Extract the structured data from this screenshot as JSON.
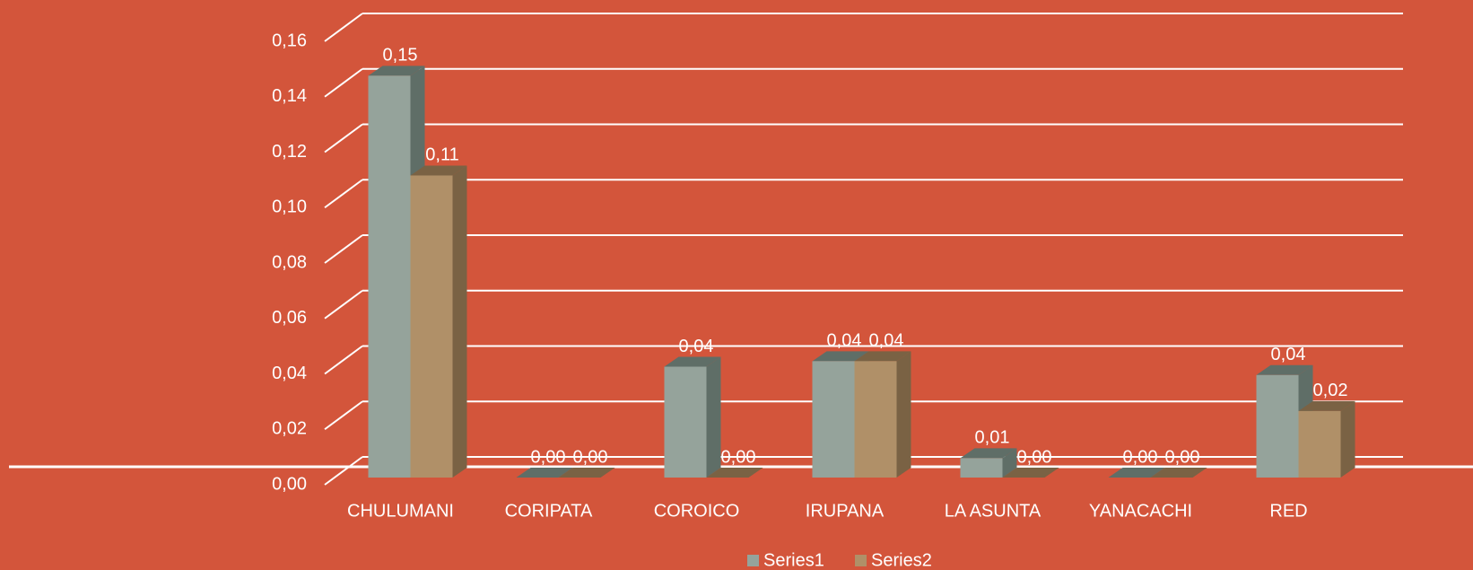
{
  "chart_data": {
    "type": "bar3d",
    "categories": [
      "CHULUMANI",
      "CORIPATA",
      "COROICO",
      "IRUPANA",
      "LA ASUNTA",
      "YANACACHI",
      "RED"
    ],
    "series": [
      {
        "name": "Series1",
        "color": "#95a39b",
        "side_color": "#5f6e67",
        "values": [
          0.145,
          0,
          0.04,
          0.042,
          0.007,
          0,
          0.037
        ],
        "value_labels": [
          "0,15",
          "0,00",
          "0,04",
          "0,04",
          "0,01",
          "0,00",
          "0,04"
        ]
      },
      {
        "name": "Series2",
        "color": "#b09068",
        "side_color": "#7a6244",
        "values": [
          0.109,
          0,
          0,
          0.042,
          0,
          0,
          0.024
        ],
        "value_labels": [
          "0,11",
          "0,00",
          "0,00",
          "0,04",
          "0,00",
          "0,00",
          "0,02"
        ]
      }
    ],
    "ylim": [
      0,
      0.16
    ],
    "yticks": [
      {
        "value": 0,
        "label": "0,00"
      },
      {
        "value": 0.02,
        "label": "0,02"
      },
      {
        "value": 0.04,
        "label": "0,04"
      },
      {
        "value": 0.06,
        "label": "0,06"
      },
      {
        "value": 0.08,
        "label": "0,08"
      },
      {
        "value": 0.1,
        "label": "0,10"
      },
      {
        "value": 0.12,
        "label": "0,12"
      },
      {
        "value": 0.14,
        "label": "0,14"
      },
      {
        "value": 0.16,
        "label": "0,16"
      }
    ],
    "grid": true,
    "legend": "bottom"
  }
}
